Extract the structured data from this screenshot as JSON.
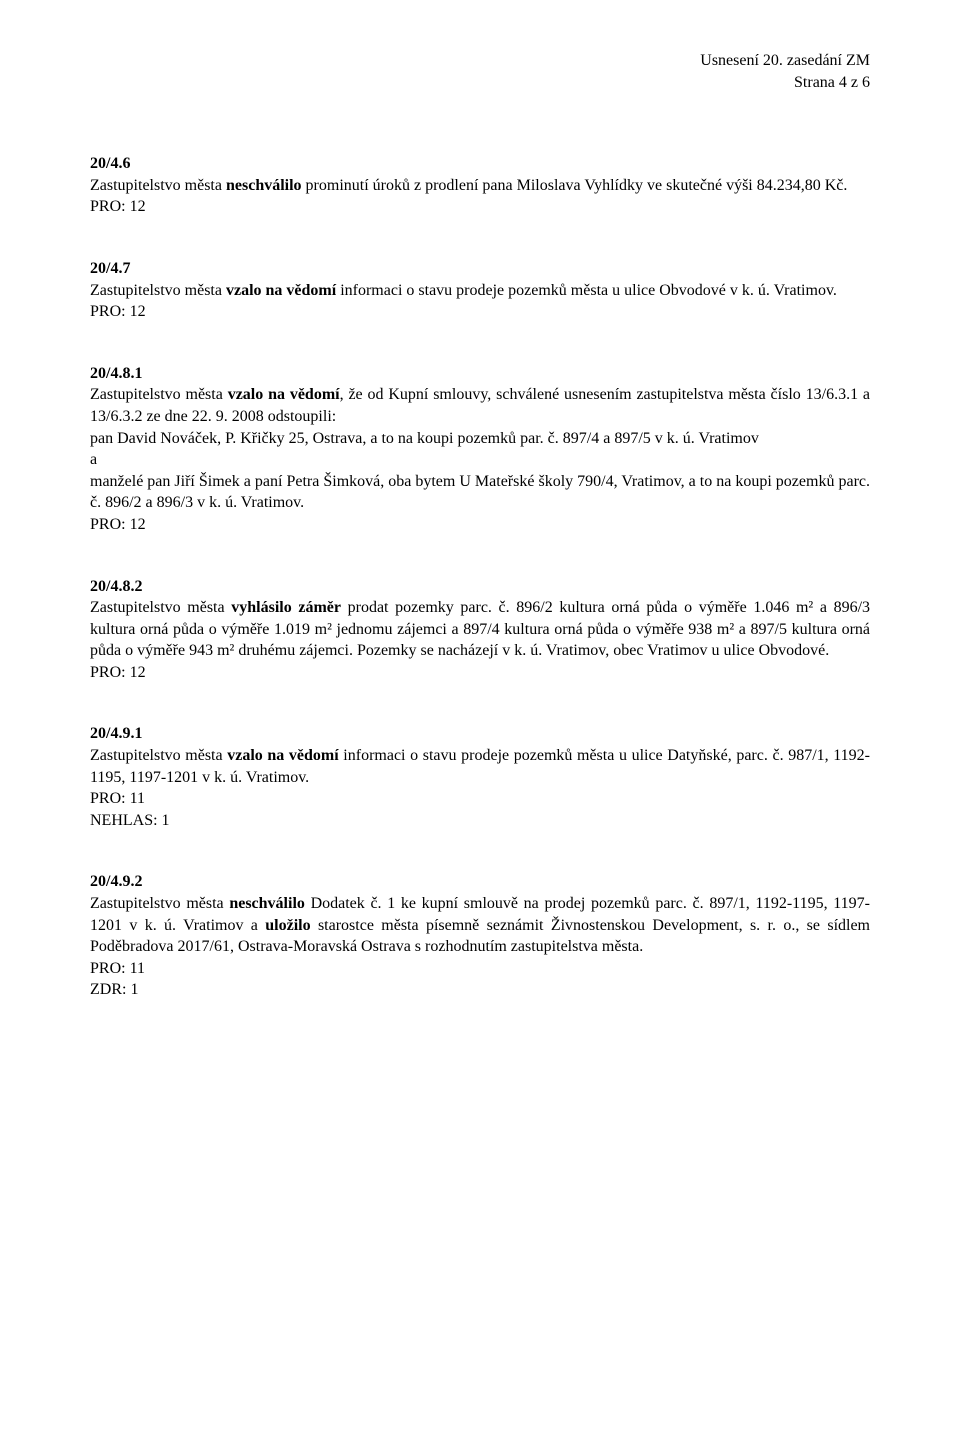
{
  "header": {
    "line1": "Usnesení 20. zasedání ZM",
    "line2": "Strana 4 z 6"
  },
  "sections": [
    {
      "id": "20/4.6",
      "body_pre": "Zastupitelstvo města ",
      "body_bold": "neschválilo",
      "body_post": " prominutí úroků z prodlení pana Miloslava Vyhlídky ve skutečné výši 84.234,80 Kč.",
      "pro": "PRO: 12"
    },
    {
      "id": "20/4.7",
      "body_pre": "Zastupitelstvo města ",
      "body_bold": "vzalo na vědomí",
      "body_post": " informaci o stavu prodeje pozemků města u ulice Obvodové v k. ú. Vratimov.",
      "pro": "PRO: 12"
    },
    {
      "id": "20/4.8.1",
      "body_pre": "Zastupitelstvo města ",
      "body_bold": "vzalo na vědomí",
      "body_post": ", že od Kupní smlouvy, schválené usnesením zastupitelstva města číslo 13/6.3.1 a 13/6.3.2 ze dne 22. 9. 2008 odstoupili:",
      "extra_lines": [
        "pan David Nováček, P. Křičky 25, Ostrava, a to na koupi pozemků par. č. 897/4 a 897/5 v k. ú. Vratimov",
        "a",
        "manželé pan Jiří Šimek a paní Petra Šimková, oba bytem U Mateřské školy 790/4, Vratimov, a to na koupi pozemků parc. č. 896/2 a 896/3 v k. ú. Vratimov."
      ],
      "pro": "PRO: 12"
    },
    {
      "id": "20/4.8.2",
      "body_pre": "Zastupitelstvo města ",
      "body_bold": "vyhlásilo záměr",
      "body_post": " prodat pozemky parc. č. 896/2 kultura orná půda o výměře 1.046 m² a 896/3 kultura orná půda o výměře 1.019 m² jednomu zájemci a 897/4 kultura orná půda o výměře 938 m² a 897/5 kultura orná půda o výměře 943 m² druhému zájemci. Pozemky se nacházejí v k. ú. Vratimov, obec Vratimov u ulice Obvodové.",
      "pro": "PRO: 12"
    },
    {
      "id": "20/4.9.1",
      "body_pre": "Zastupitelstvo města ",
      "body_bold": "vzalo na vědomí",
      "body_post": " informaci o stavu prodeje pozemků města u ulice Datyňské, parc. č. 987/1, 1192-1195, 1197-1201 v k. ú. Vratimov.",
      "pro": "PRO: 11",
      "nehlas": "NEHLAS: 1"
    },
    {
      "id": "20/4.9.2",
      "body_pre": "Zastupitelstvo města ",
      "body_bold": "neschválilo",
      "body_post": " Dodatek č. 1 ke kupní smlouvě na prodej pozemků parc. č. 897/1, 1192-1195, 1197-1201 v k. ú. Vratimov a ",
      "body_bold2": "uložilo",
      "body_post2": " starostce města písemně seznámit Živnostenskou Development, s. r. o., se sídlem Poděbradova 2017/61, Ostrava-Moravská Ostrava s rozhodnutím zastupitelstva města.",
      "pro": "PRO: 11",
      "zdr": "ZDR: 1"
    }
  ]
}
